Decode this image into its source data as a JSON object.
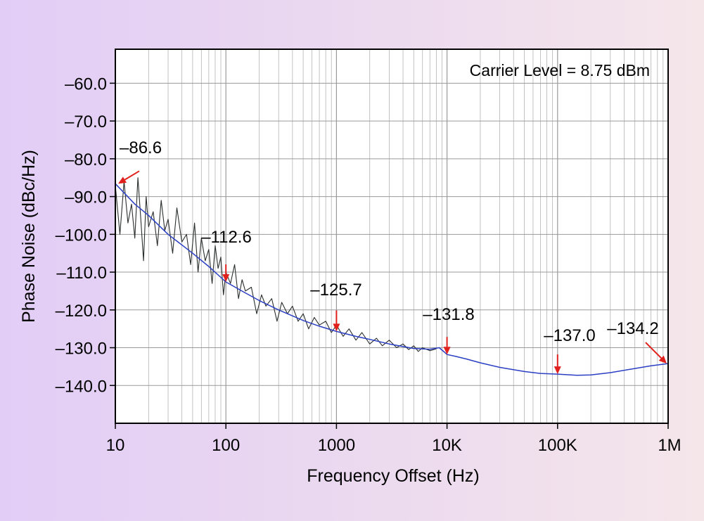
{
  "chart_data": {
    "type": "line",
    "title": "",
    "xlabel": "Frequency Offset (Hz)",
    "ylabel": "Phase Noise (dBc/Hz)",
    "x_scale": "log",
    "xlim": [
      10,
      1000000
    ],
    "ylim": [
      -150,
      -51
    ],
    "grid": true,
    "x_ticks": [
      {
        "value": 10,
        "label": "10"
      },
      {
        "value": 100,
        "label": "100"
      },
      {
        "value": 1000,
        "label": "1000"
      },
      {
        "value": 10000,
        "label": "10K"
      },
      {
        "value": 100000,
        "label": "100K"
      },
      {
        "value": 1000000,
        "label": "1M"
      }
    ],
    "y_ticks": [
      {
        "value": -60,
        "label": "–60.0"
      },
      {
        "value": -70,
        "label": "–70.0"
      },
      {
        "value": -80,
        "label": "–80.0"
      },
      {
        "value": -90,
        "label": "–90.0"
      },
      {
        "value": -100,
        "label": "–100.0"
      },
      {
        "value": -110,
        "label": "–110.0"
      },
      {
        "value": -120,
        "label": "–120.0"
      },
      {
        "value": -130,
        "label": "–130.0"
      },
      {
        "value": -140,
        "label": "–140.0"
      }
    ],
    "note": "Carrier Level = 8.75 dBm",
    "series": [
      {
        "color": "#2b3fc4",
        "x": [
          10,
          12,
          15,
          20,
          30,
          50,
          70,
          100,
          150,
          200,
          300,
          500,
          700,
          1000,
          1500,
          2000,
          3000,
          5000,
          7000,
          8500,
          9500,
          10000,
          12000,
          15000,
          20000,
          30000,
          50000,
          70000,
          100000,
          150000,
          200000,
          300000,
          500000,
          700000,
          1000000
        ],
        "y": [
          -86.6,
          -89,
          -92,
          -95,
          -100,
          -105,
          -108.5,
          -112.6,
          -115.5,
          -117.5,
          -120,
          -122.8,
          -124.3,
          -125.7,
          -127,
          -127.8,
          -129,
          -130.2,
          -130.4,
          -130,
          -131.2,
          -131.8,
          -132.3,
          -133,
          -134,
          -135.2,
          -136.3,
          -136.8,
          -137,
          -137.3,
          -137.2,
          -136.6,
          -135.5,
          -134.8,
          -134.2
        ]
      },
      {
        "color": "#2a2f2c",
        "x": [
          10,
          11,
          12,
          13,
          14,
          15,
          16,
          17,
          18,
          19,
          20,
          22,
          24,
          26,
          28,
          30,
          33,
          36,
          40,
          44,
          48,
          52,
          56,
          60,
          65,
          70,
          75,
          80,
          85,
          90,
          95,
          100,
          110,
          120,
          130,
          140,
          150,
          170,
          190,
          210,
          230,
          260,
          290,
          320,
          360,
          400,
          450,
          500,
          560,
          630,
          700,
          800,
          900,
          1000,
          1150,
          1300,
          1500,
          1700,
          2000,
          2300,
          2600,
          3000,
          3500,
          4000,
          4500,
          5000,
          5500,
          6000,
          7000,
          8000
        ],
        "y": [
          -87,
          -100,
          -86,
          -97,
          -92,
          -101,
          -85,
          -96,
          -107,
          -90,
          -98,
          -94,
          -103,
          -91,
          -99,
          -96,
          -105,
          -93,
          -102,
          -100,
          -108,
          -97,
          -110,
          -101,
          -107,
          -104,
          -113,
          -103,
          -109,
          -106,
          -116,
          -110,
          -113,
          -108,
          -117,
          -112,
          -115,
          -114,
          -121,
          -116,
          -119,
          -117,
          -123,
          -118,
          -121,
          -119,
          -123,
          -121,
          -125,
          -122,
          -124,
          -123,
          -126,
          -124,
          -127,
          -125,
          -128,
          -126,
          -129,
          -127.5,
          -129.5,
          -128,
          -130,
          -129,
          -130.5,
          -129.5,
          -131,
          -130,
          -130.8,
          -130.3
        ]
      }
    ],
    "annotations": [
      {
        "label": "–86.6",
        "x": 10,
        "y": -86.6
      },
      {
        "label": "–112.6",
        "x": 100,
        "y": -112.6
      },
      {
        "label": "–125.7",
        "x": 1000,
        "y": -125.7
      },
      {
        "label": "–131.8",
        "x": 10000,
        "y": -131.8
      },
      {
        "label": "–137.0",
        "x": 100000,
        "y": -137.0
      },
      {
        "label": "–134.2",
        "x": 1000000,
        "y": -134.2
      }
    ],
    "annotation_color": "#e0201c"
  }
}
